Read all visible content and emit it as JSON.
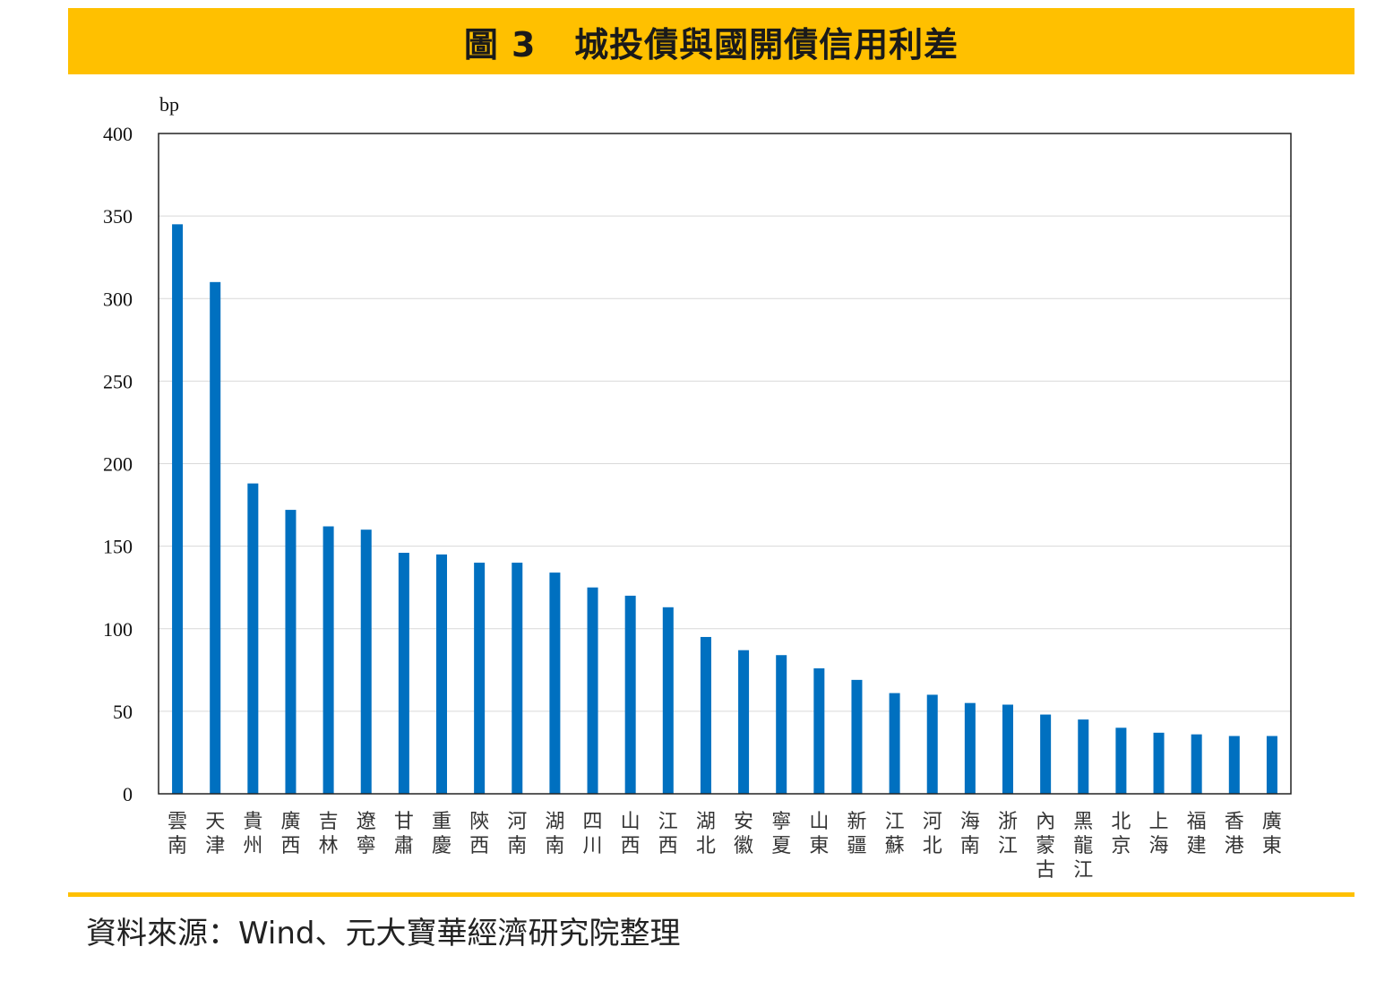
{
  "title": "圖 3   城投債與國開債信用利差",
  "source": "資料來源：Wind、元大寶華經濟研究院整理",
  "colors": {
    "accent": "#FFC000",
    "bar": "#0070C0"
  },
  "chart_data": {
    "type": "bar",
    "ylabel": "bp",
    "xlabel": "",
    "ylim": [
      0,
      400
    ],
    "yticks": [
      0,
      50,
      100,
      150,
      200,
      250,
      300,
      350,
      400
    ],
    "grid": true,
    "categories": [
      "雲南",
      "天津",
      "貴州",
      "廣西",
      "吉林",
      "遼寧",
      "甘肅",
      "重慶",
      "陝西",
      "河南",
      "湖南",
      "四川",
      "山西",
      "江西",
      "湖北",
      "安徽",
      "寧夏",
      "山東",
      "新疆",
      "江蘇",
      "河北",
      "海南",
      "浙江",
      "內蒙古",
      "黑龍江",
      "北京",
      "上海",
      "福建",
      "香港",
      "廣東"
    ],
    "values": [
      345,
      310,
      188,
      172,
      162,
      160,
      146,
      145,
      140,
      140,
      134,
      125,
      120,
      113,
      95,
      87,
      84,
      76,
      69,
      61,
      60,
      55,
      54,
      48,
      45,
      40,
      37,
      36,
      35,
      35
    ]
  }
}
